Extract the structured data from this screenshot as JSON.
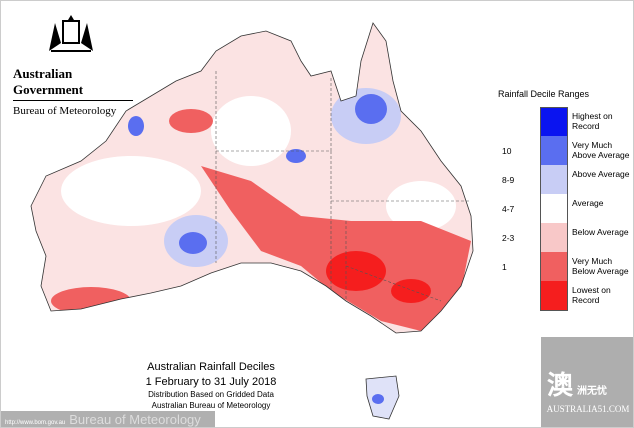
{
  "logo": {
    "government": "Australian Government",
    "bureau": "Bureau of Meteorology"
  },
  "legend": {
    "title": "Rainfall Decile Ranges",
    "items": [
      {
        "range": "",
        "label": "Highest on Record",
        "color": "#0a14f0"
      },
      {
        "range": "10",
        "label": "Very Much Above Average",
        "color": "#5a6ef0"
      },
      {
        "range": "8-9",
        "label": "Above Average",
        "color": "#c8cdf5"
      },
      {
        "range": "4-7",
        "label": "Average",
        "color": "#ffffff"
      },
      {
        "range": "2-3",
        "label": "Below Average",
        "color": "#f8c8c8"
      },
      {
        "range": "1",
        "label": "Very Much Below Average",
        "color": "#f06060"
      },
      {
        "range": "",
        "label": "Lowest on Record",
        "color": "#f51e1e"
      }
    ]
  },
  "caption": {
    "title": "Australian Rainfall Deciles",
    "period": "1 February to 31 July 2018",
    "note": "Distribution Based on Gridded Data",
    "source": "Australian Bureau of Meteorology"
  },
  "watermark": {
    "url": "http://www.bom.gov.au",
    "text": "Bureau of Meteorology"
  },
  "brand": {
    "chinese": "澳",
    "chinese_small": "洲无忧",
    "site": "AUSTRALIA51.COM"
  }
}
